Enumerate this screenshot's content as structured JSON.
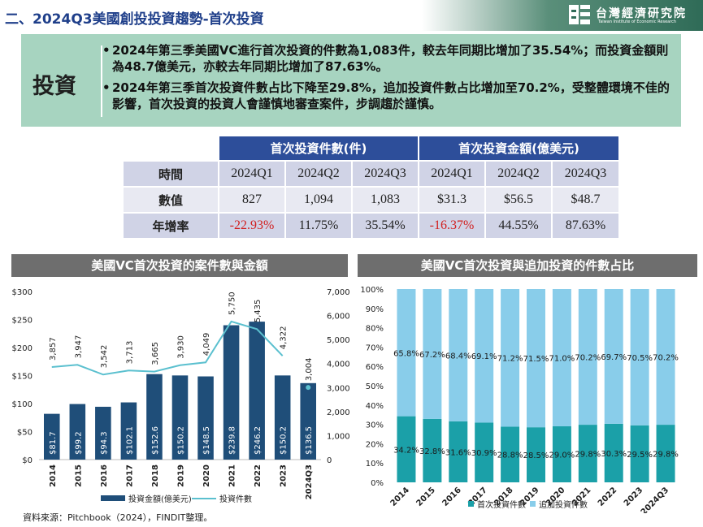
{
  "header": {
    "title": "二、2024Q3美國創投投資趨勢-首次投資",
    "logo_zh": "台灣經濟研究院",
    "logo_en": "Taiwan Institute of Economic Research"
  },
  "summary": {
    "tag": "投資",
    "bullets": [
      "2024年第三季美國VC進行首次投資的件數為1,083件，較去年同期比增加了35.54%；而投資金額則為48.7億美元，亦較去年同期比增加了87.63%。",
      "2024年第三季首次投資件數占比下降至29.8%，追加投資件數占比增加至70.2%，受整體環境不佳的影響，首次投資的投資人會謹慎地審查案件，步調趨於謹慎。"
    ]
  },
  "table": {
    "group_count": "首次投資件數(件)",
    "group_amount": "首次投資金額(億美元)",
    "rows": [
      {
        "head": "時間",
        "cells": [
          "2024Q1",
          "2024Q2",
          "2024Q3",
          "2024Q1",
          "2024Q2",
          "2024Q3"
        ]
      },
      {
        "head": "數值",
        "cells": [
          "827",
          "1,094",
          "1,083",
          "$31.3",
          "$56.5",
          "$48.7"
        ]
      },
      {
        "head": "年增率",
        "cells": [
          "-22.93%",
          "11.75%",
          "35.54%",
          "-16.37%",
          "44.55%",
          "87.63%"
        ]
      }
    ]
  },
  "chart_data": [
    {
      "type": "bar",
      "title": "美國VC首次投資的案件數與金額",
      "categories": [
        "2014",
        "2015",
        "2016",
        "2017",
        "2018",
        "2019",
        "2020",
        "2021",
        "2022",
        "2023",
        "2024Q3"
      ],
      "y_left_ticks": [
        "$0",
        "$50",
        "$100",
        "$150",
        "$200",
        "$250",
        "$300"
      ],
      "y_right_ticks": [
        "0",
        "1,000",
        "2,000",
        "3,000",
        "4,000",
        "5,000",
        "6,000",
        "7,000"
      ],
      "ylim_left": [
        0,
        300
      ],
      "ylim_right": [
        0,
        7000
      ],
      "series": [
        {
          "name": "投資金額(億美元)",
          "kind": "bar",
          "axis": "left",
          "color": "#1f4e79",
          "values": [
            81.7,
            99.2,
            94.3,
            102.1,
            152.6,
            150.2,
            148.5,
            239.8,
            246.2,
            150.2,
            136.5
          ],
          "labels": [
            "$81.7",
            "$99.2",
            "$94.3",
            "$102.1",
            "$152.6",
            "$150.2",
            "$148.5",
            "$239.8",
            "$246.2",
            "$150.2",
            "$136.5"
          ]
        },
        {
          "name": "投資件數",
          "kind": "line",
          "axis": "right",
          "color": "#5bc0cf",
          "values": [
            3857,
            3947,
            3542,
            3713,
            3665,
            3930,
            4049,
            5750,
            5435,
            4322,
            3004
          ],
          "labels": [
            "3,857",
            "3,947",
            "3,542",
            "3,713",
            "3,665",
            "3,930",
            "4,049",
            "5,750",
            "5,435",
            "4,322",
            "3,004"
          ]
        }
      ],
      "legend": "bottom"
    },
    {
      "type": "bar",
      "stacked": true,
      "title": "美國VC首次投資與追加投資的件數占比",
      "categories": [
        "2014",
        "2015",
        "2016",
        "2017",
        "2018",
        "2019",
        "2020",
        "2021",
        "2022",
        "2023",
        "2024Q3"
      ],
      "y_ticks": [
        "0%",
        "10%",
        "20%",
        "30%",
        "40%",
        "50%",
        "60%",
        "70%",
        "80%",
        "90%",
        "100%"
      ],
      "ylim": [
        0,
        100
      ],
      "series": [
        {
          "name": "首次投資件數",
          "color": "#1ba0a8",
          "values": [
            34.2,
            32.8,
            31.6,
            30.9,
            28.8,
            28.5,
            29.0,
            29.8,
            30.3,
            29.5,
            29.8
          ],
          "labels": [
            "34.2%",
            "32.8%",
            "31.6%",
            "30.9%",
            "28.8%",
            "28.5%",
            "29.0%",
            "29.8%",
            "30.3%",
            "29.5%",
            "29.8%"
          ]
        },
        {
          "name": "追加投資件數",
          "color": "#89cdea",
          "values": [
            65.8,
            67.2,
            68.4,
            69.1,
            71.2,
            71.5,
            71.0,
            70.2,
            69.7,
            70.5,
            70.2
          ],
          "labels": [
            "65.8%",
            "67.2%",
            "68.4%",
            "69.1%",
            "71.2%",
            "71.5%",
            "71.0%",
            "70.2%",
            "69.7%",
            "70.5%",
            "70.2%"
          ]
        }
      ],
      "legend": "bottom"
    }
  ],
  "source": "資料來源：Pitchbook（2024），FINDIT整理。"
}
